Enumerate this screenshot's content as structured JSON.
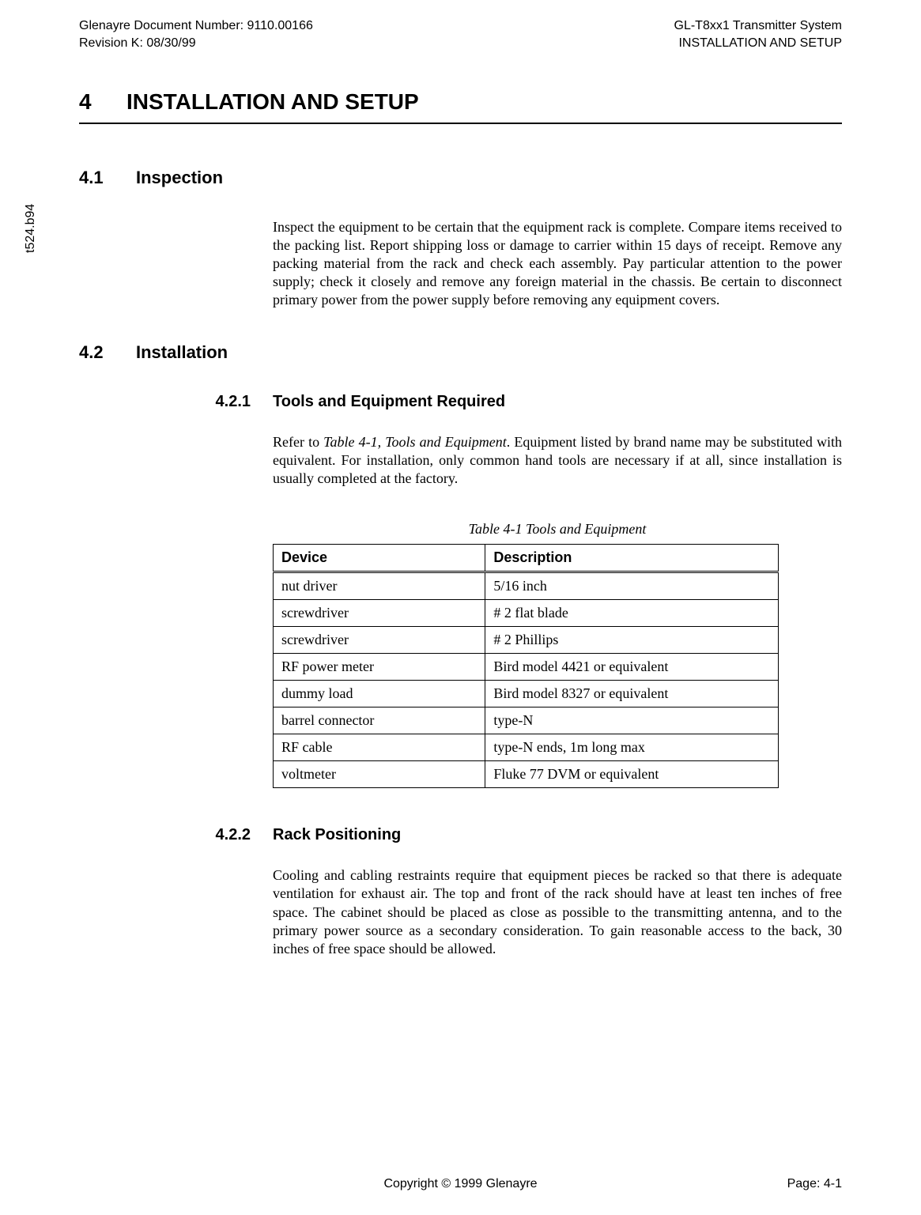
{
  "header": {
    "doc_number": "Glenayre Document Number: 9110.00166",
    "revision": "Revision K: 08/30/99",
    "system": "GL-T8xx1 Transmitter System",
    "section": "INSTALLATION AND SETUP"
  },
  "sidetext": "t524.b94",
  "chapter": {
    "number": "4",
    "title": "INSTALLATION AND SETUP"
  },
  "s41": {
    "number": "4.1",
    "title": "Inspection",
    "body": "Inspect the equipment to be certain that the equipment rack is complete. Compare items received to the packing list. Report shipping loss or damage to carrier within 15 days of receipt. Remove any packing material from the rack and check each assembly. Pay particular attention to the power supply; check it closely and remove any foreign material in the chassis. Be certain to disconnect primary power from the power supply before removing any equipment covers."
  },
  "s42": {
    "number": "4.2",
    "title": "Installation"
  },
  "s421": {
    "number": "4.2.1",
    "title": "Tools and Equipment Required",
    "body_pre": "Refer to ",
    "body_em": "Table 4-1, Tools and Equipment",
    "body_post": ". Equipment listed by brand name may be substituted with equivalent. For installation, only common hand tools are necessary if at all, since installation is usually completed at the factory."
  },
  "table": {
    "caption": "Table 4-1  Tools and Equipment",
    "col1": "Device",
    "col2": "Description",
    "rows": [
      {
        "device": "nut driver",
        "desc": "5/16 inch"
      },
      {
        "device": "screwdriver",
        "desc": "# 2 flat blade"
      },
      {
        "device": "screwdriver",
        "desc": "# 2 Phillips"
      },
      {
        "device": "RF power meter",
        "desc": "Bird model 4421 or equivalent"
      },
      {
        "device": "dummy load",
        "desc": "Bird model 8327 or equivalent"
      },
      {
        "device": "barrel connector",
        "desc": "type-N"
      },
      {
        "device": "RF cable",
        "desc": "type-N ends, 1m long max"
      },
      {
        "device": "voltmeter",
        "desc": "Fluke 77 DVM or equivalent"
      }
    ]
  },
  "s422": {
    "number": "4.2.2",
    "title": "Rack Positioning",
    "body": "Cooling and cabling restraints require that equipment pieces be racked so that there is adequate ventilation for exhaust air. The top and front of the rack should have at least ten inches of free space. The cabinet should be placed as close as possible to the transmitting antenna, and to the primary power source as a secondary consideration. To gain reasonable access to the back, 30 inches of free space should be allowed."
  },
  "footer": {
    "copyright": "Copyright © 1999  Glenayre",
    "page": "Page: 4-1"
  }
}
